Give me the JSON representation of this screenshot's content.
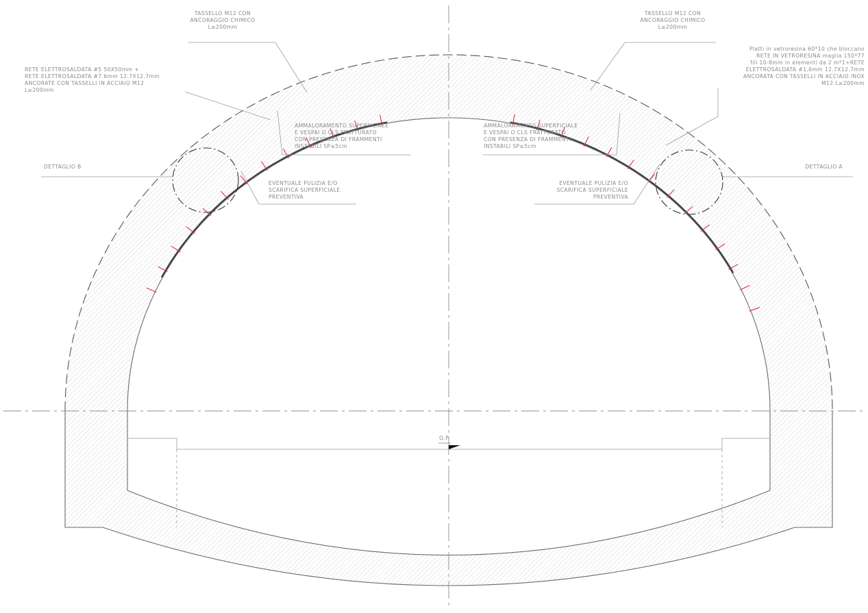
{
  "labels": {
    "left_tassello": [
      "TASSELLO M12 CON",
      "ANCORAGGIO CHIMICO",
      "L≥200mm"
    ],
    "right_tassello": [
      "TASSELLO M12 CON",
      "ANCORAGGIO CHIMICO",
      "L≥200mm"
    ],
    "left_rete": [
      "RETE ELETTROSALDATA #5 50X50mm +",
      "RETE ELETTROSALDATA #7.6mm 12.7X12.7mm",
      "ANCORATE CON TASSELLI IN ACCIAIO M12",
      "L≥200mm"
    ],
    "right_piatti": [
      "Piatti in vetroresina 60*10 che bloccano",
      "RETE IN VETRORESINA maglia 150*77",
      "fili 10-8mm in elementi da 2 m*1+RETE",
      "ELETTROSALDATA #1.6mm 12.7X12.7mm",
      "ANCORATA CON TASSELLI IN ACCIAIO INOX",
      "M12 L≥200mm"
    ],
    "left_ammaloramento": [
      "AMMALORAMENTO SUPERFICIALE",
      "E VESPAI O CLS FRATTURATO",
      "CON PRESENZA DI FRAMMENTI",
      "INSTABILI SP≤5cm"
    ],
    "right_ammaloramento": [
      "AMMALORAMENTO SUPERFICIALE",
      "E VESPAI O CLS FRATTURATO",
      "CON PRESENZA DI FRAMMENTI",
      "INSTABILI SP≤5cm"
    ],
    "left_pulizia": [
      "EVENTUALE PULIZIA E/O",
      "SCARIFICA SUPERFICIALE",
      "PREVENTIVA"
    ],
    "right_pulizia": [
      "EVENTUALE PULIZIA E/O",
      "SCARIFICA SUPERFICIALE",
      "PREVENTIVA"
    ],
    "dettaglio_b": "DETTAGLIO B",
    "dettaglio_a": "DETTAGLIO A",
    "qp": "Q.P."
  },
  "colors": {
    "anchor": "#e0303c",
    "hatch": "#c9c9c9",
    "outline": "#6a6a6a"
  }
}
